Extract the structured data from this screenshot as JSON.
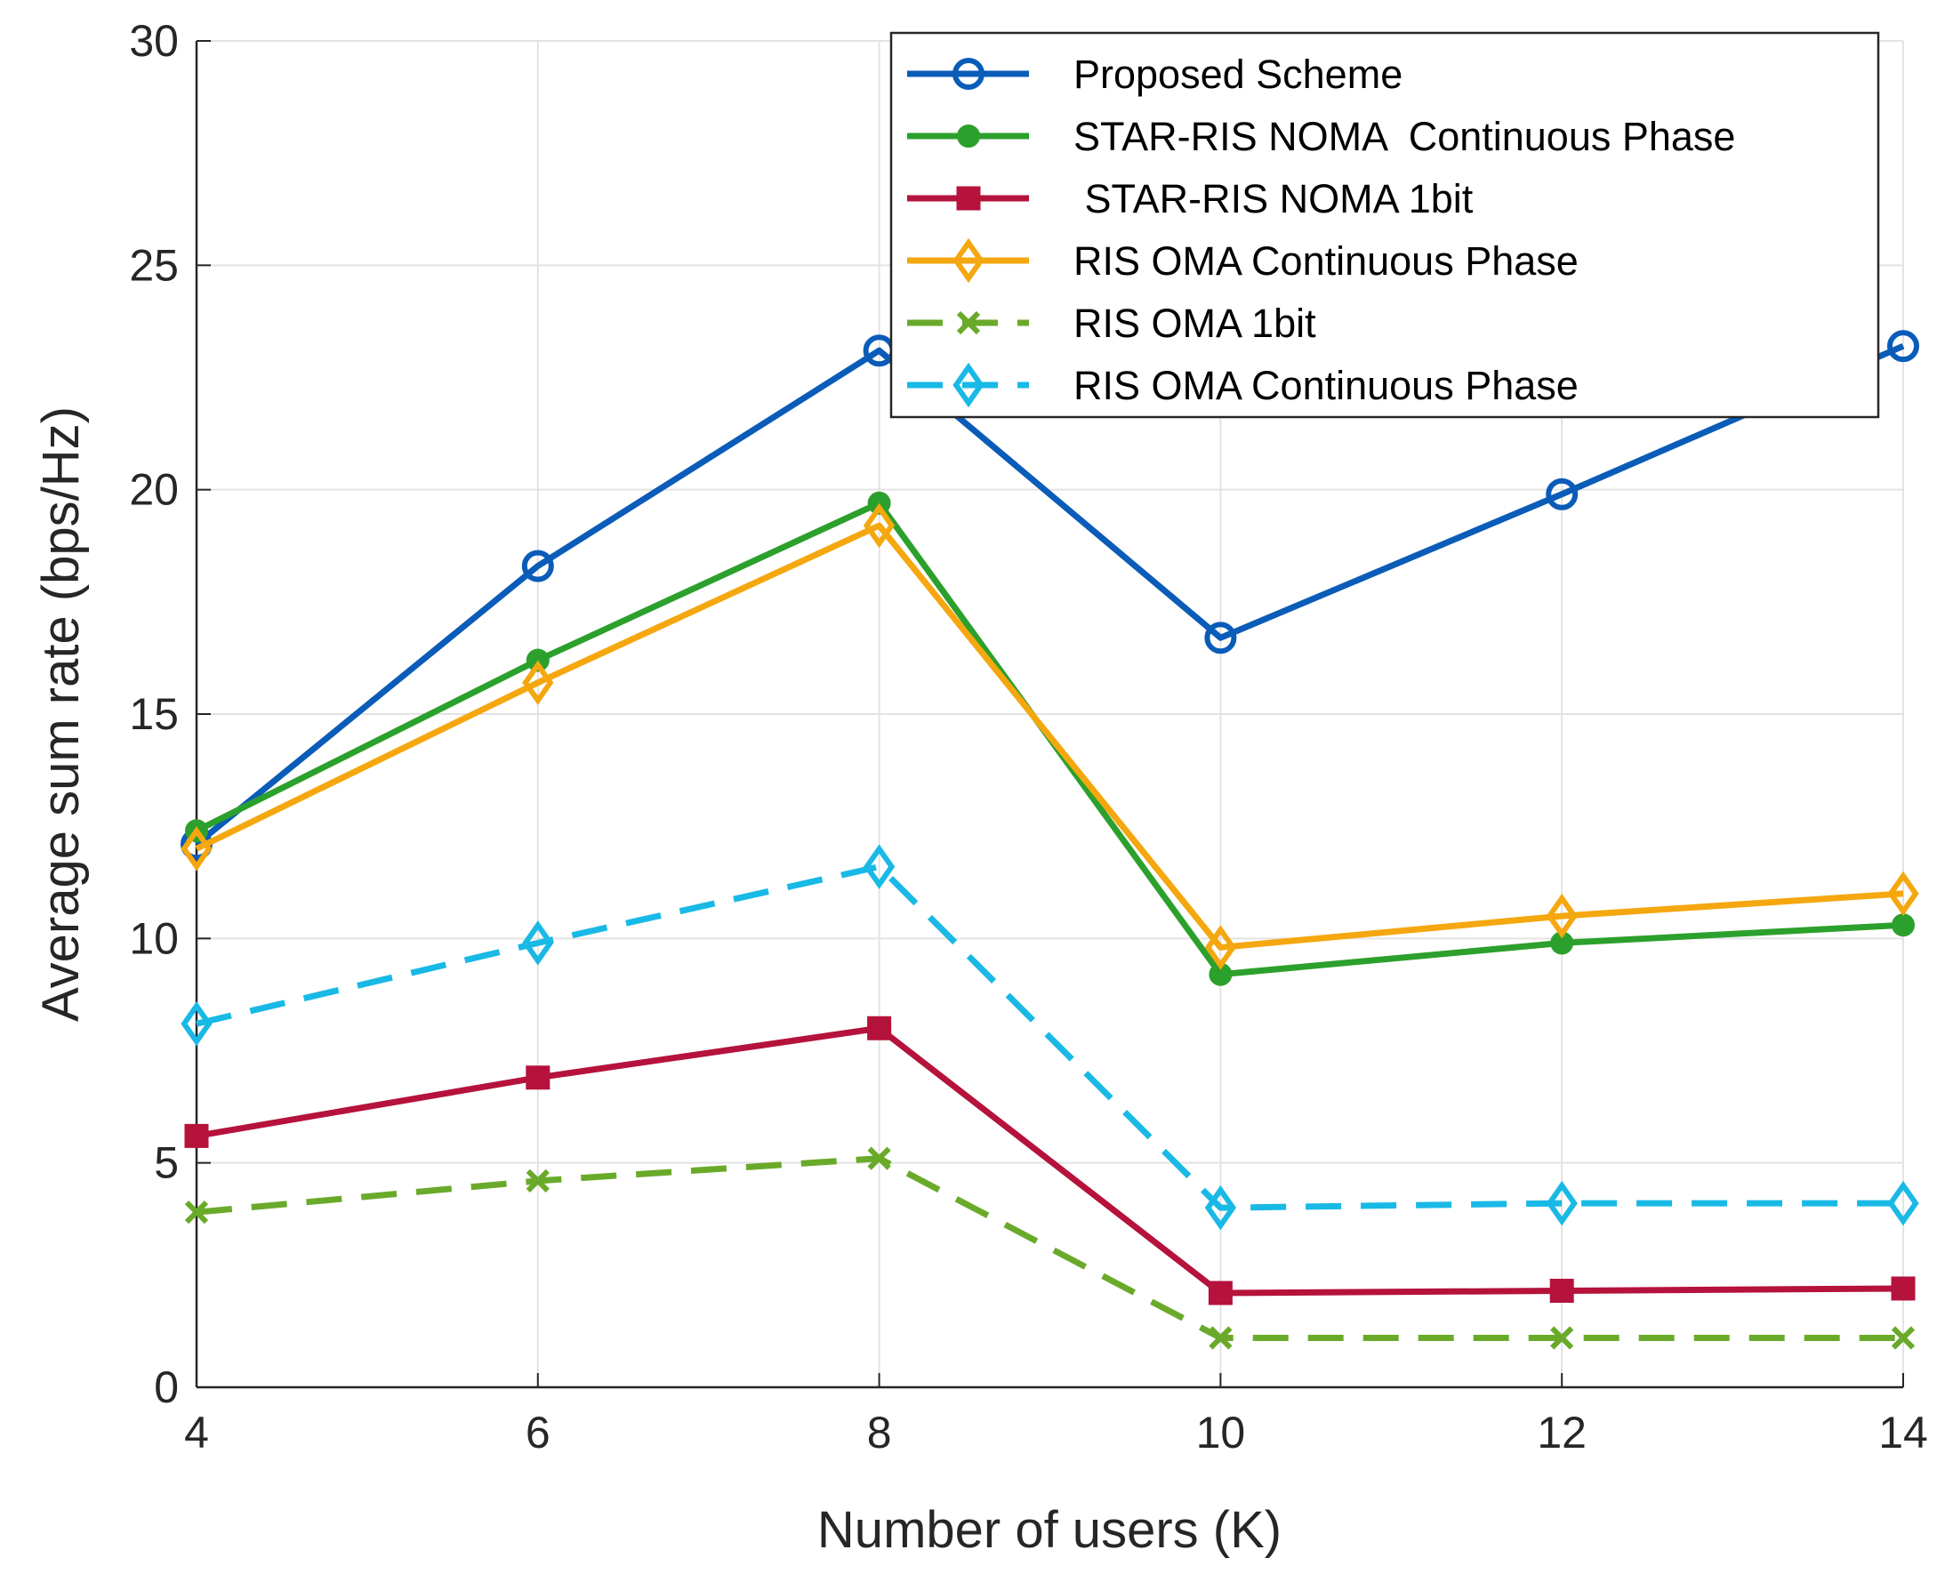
{
  "chart_data": {
    "type": "line",
    "title": "",
    "xlabel": "Number of users (K)",
    "ylabel": "Average sum rate (bps/Hz)",
    "xlim": [
      4,
      14
    ],
    "ylim": [
      0,
      30
    ],
    "xticks": [
      "4",
      "6",
      "8",
      "10",
      "12",
      "14"
    ],
    "yticks": [
      "0",
      "5",
      "10",
      "15",
      "20",
      "25",
      "30"
    ],
    "grid": true,
    "legend_position": "top-right",
    "x": [
      4,
      6,
      8,
      10,
      12,
      14
    ],
    "series": [
      {
        "name": "Proposed Scheme",
        "color": "#0a5cb8",
        "marker": "circle",
        "dash": false,
        "values": [
          12.1,
          18.3,
          23.1,
          16.7,
          19.9,
          23.2
        ]
      },
      {
        "name": "STAR-RIS NOMA  Continuous Phase",
        "color": "#2ca02c",
        "marker": "dot",
        "dash": false,
        "values": [
          12.4,
          16.2,
          19.7,
          9.2,
          9.9,
          10.3
        ]
      },
      {
        "name": " STAR-RIS NOMA 1bit",
        "color": "#b5123c",
        "marker": "square",
        "dash": false,
        "values": [
          5.6,
          6.9,
          8.0,
          2.1,
          2.15,
          2.2
        ]
      },
      {
        "name": "RIS OMA Continuous Phase",
        "color": "#f5a70f",
        "marker": "diamond",
        "dash": false,
        "values": [
          12.0,
          15.7,
          19.2,
          9.8,
          10.5,
          11.0
        ]
      },
      {
        "name": "RIS OMA 1bit",
        "color": "#6aaa2a",
        "marker": "x",
        "dash": true,
        "values": [
          3.9,
          4.6,
          5.1,
          1.1,
          1.1,
          1.1
        ]
      },
      {
        "name": "RIS OMA Continuous Phase",
        "color": "#19b9e6",
        "marker": "diamond",
        "dash": true,
        "values": [
          8.1,
          9.9,
          11.6,
          4.0,
          4.1,
          4.1
        ]
      }
    ]
  }
}
